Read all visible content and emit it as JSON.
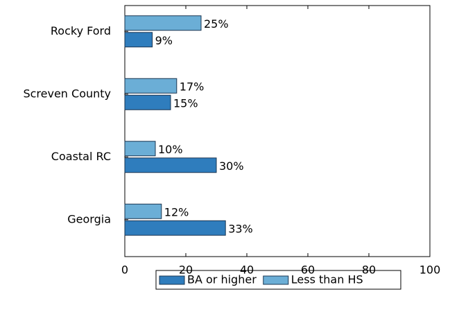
{
  "chart_data": {
    "type": "bar",
    "orientation": "horizontal",
    "categories": [
      "Rocky Ford",
      "Screven County",
      "Coastal RC",
      "Georgia"
    ],
    "series": [
      {
        "name": "BA or higher",
        "color": "#2f7dbd",
        "values": [
          9,
          15,
          30,
          33
        ],
        "value_labels": [
          "9%",
          "15%",
          "30%",
          "33%"
        ]
      },
      {
        "name": "Less than HS",
        "color": "#6baed6",
        "values": [
          25,
          17,
          10,
          12
        ],
        "value_labels": [
          "25%",
          "17%",
          "10%",
          "12%"
        ]
      }
    ],
    "xlim": [
      0,
      100
    ],
    "xticks": [
      0,
      20,
      40,
      60,
      80,
      100
    ],
    "grid": false,
    "legend": "bottom"
  }
}
